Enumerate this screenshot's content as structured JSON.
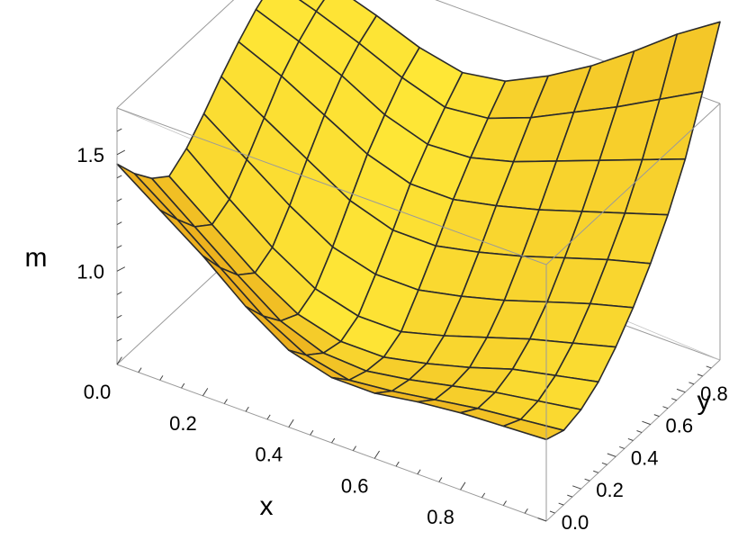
{
  "chart_data": {
    "type": "surface3d",
    "xlabel": "x",
    "ylabel": "y",
    "zlabel": "m",
    "x_range": [
      0,
      1
    ],
    "y_range": [
      0,
      1
    ],
    "z_range": [
      0.6,
      1.7
    ],
    "x_ticks": [
      "0.0",
      "0.2",
      "0.4",
      "0.6",
      "0.8"
    ],
    "y_ticks": [
      "0.0",
      "0.2",
      "0.4",
      "0.6",
      "0.8"
    ],
    "z_ticks": [
      "1.0",
      "1.5"
    ],
    "x_tick_values": [
      0,
      0.2,
      0.4,
      0.6,
      0.8
    ],
    "y_tick_values": [
      0,
      0.2,
      0.4,
      0.6,
      0.8
    ],
    "z_tick_values": [
      1.0,
      1.5
    ],
    "mesh": true,
    "surface_color": "#f5c21b",
    "mesh_color": "#2b2b2b",
    "box_color": "#9a9a9a",
    "grid_x": [
      0,
      0.1,
      0.2,
      0.3,
      0.4,
      0.5,
      0.6,
      0.7,
      0.8,
      0.9,
      1.0
    ],
    "grid_y": [
      0,
      0.1,
      0.2,
      0.3,
      0.4,
      0.5,
      0.6,
      0.7,
      0.8,
      0.9,
      1.0
    ],
    "z_values": [
      [
        1.46,
        1.35,
        1.26,
        1.2,
        1.25,
        1.33,
        1.42,
        1.5,
        1.57,
        1.62,
        1.66
      ],
      [
        1.33,
        1.22,
        1.12,
        1.06,
        1.1,
        1.2,
        1.31,
        1.42,
        1.5,
        1.56,
        1.6
      ],
      [
        1.2,
        1.08,
        0.98,
        0.92,
        0.96,
        1.07,
        1.2,
        1.32,
        1.42,
        1.49,
        1.54
      ],
      [
        1.05,
        0.94,
        0.85,
        0.81,
        0.85,
        0.96,
        1.09,
        1.22,
        1.32,
        1.41,
        1.47
      ],
      [
        0.93,
        0.84,
        0.78,
        0.76,
        0.8,
        0.91,
        1.03,
        1.16,
        1.26,
        1.35,
        1.43
      ],
      [
        0.88,
        0.8,
        0.77,
        0.76,
        0.8,
        0.91,
        1.03,
        1.16,
        1.27,
        1.37,
        1.46
      ],
      [
        0.88,
        0.82,
        0.8,
        0.8,
        0.85,
        0.95,
        1.07,
        1.2,
        1.32,
        1.44,
        1.55
      ],
      [
        0.91,
        0.85,
        0.84,
        0.85,
        0.91,
        1.0,
        1.12,
        1.25,
        1.39,
        1.53,
        1.66
      ],
      [
        0.93,
        0.88,
        0.88,
        0.91,
        0.97,
        1.06,
        1.18,
        1.31,
        1.46,
        1.62,
        1.79
      ],
      [
        0.94,
        0.9,
        0.91,
        0.95,
        1.02,
        1.12,
        1.24,
        1.37,
        1.53,
        1.72,
        1.93
      ],
      [
        0.95,
        0.92,
        0.94,
        0.99,
        1.07,
        1.17,
        1.29,
        1.43,
        1.6,
        1.82,
        2.05
      ]
    ]
  }
}
